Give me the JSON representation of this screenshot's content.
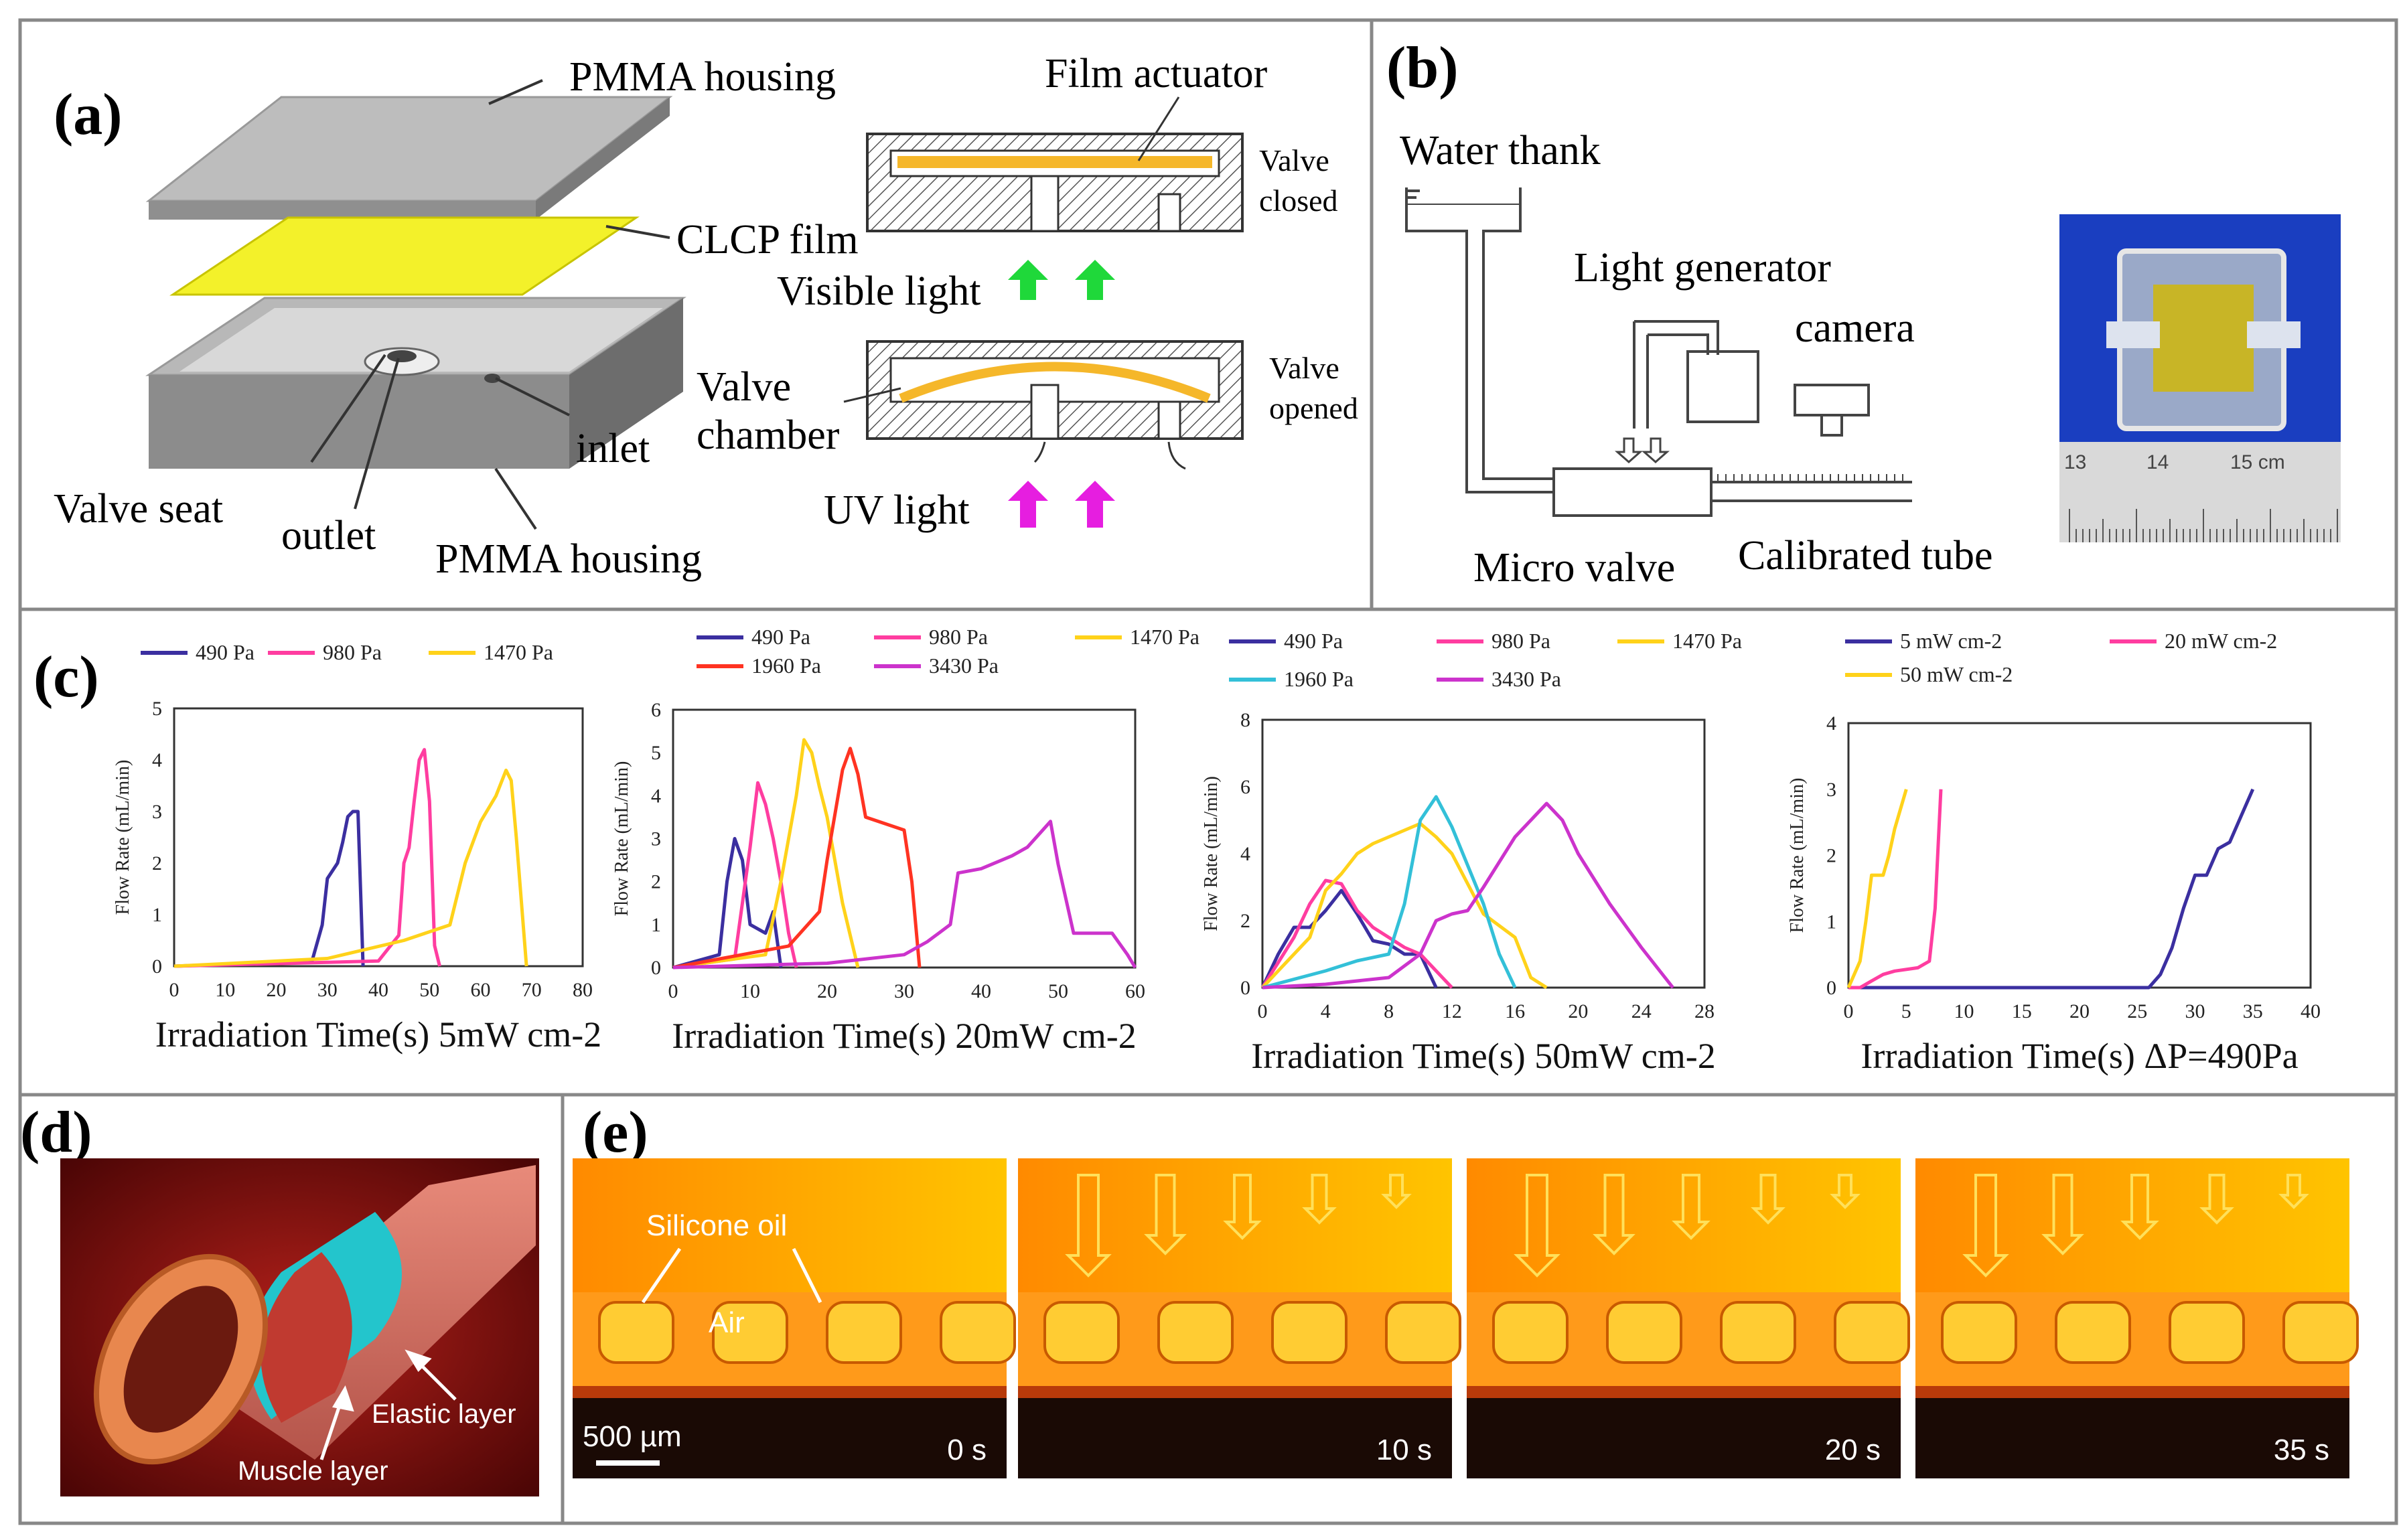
{
  "panel_a": {
    "label": "(a)",
    "pmma_top": "PMMA housing",
    "clcp": "CLCP film",
    "valve_seat": "Valve seat",
    "outlet": "outlet",
    "inlet": "inlet",
    "pmma_bottom": "PMMA housing",
    "film_actuator": "Film actuator",
    "valve_closed_1": "Valve",
    "valve_closed_2": "closed",
    "visible_light": "Visible light",
    "valve_chamber_1": "Valve",
    "valve_chamber_2": "chamber",
    "valve_opened_1": "Valve",
    "valve_opened_2": "opened",
    "uv_light": "UV light"
  },
  "panel_b": {
    "label": "(b)",
    "water_tank": "Water thank",
    "light_generator": "Light generator",
    "camera": "camera",
    "micro_valve": "Micro valve",
    "calibrated_tube": "Calibrated tube",
    "ruler": [
      "13",
      "14",
      "15 cm"
    ]
  },
  "panel_c": {
    "label": "(c)"
  },
  "panel_d": {
    "label": "(d)",
    "elastic": "Elastic layer",
    "muscle": "Muscle layer"
  },
  "panel_e": {
    "label": "(e)",
    "silicone": "Silicone oil",
    "air": "Air",
    "scale": "500 µm",
    "times": [
      "0 s",
      "10 s",
      "20 s",
      "35 s"
    ]
  },
  "chart_data": [
    {
      "type": "line",
      "title": "",
      "xlabel": "Irradiation Time(s) 5mW cm-2",
      "ylabel": "Flow Rate (mL/min)",
      "xlim": [
        0,
        80
      ],
      "ylim": [
        0,
        5
      ],
      "xticks": [
        0,
        10,
        20,
        30,
        40,
        50,
        60,
        70,
        80
      ],
      "yticks": [
        0,
        1,
        2,
        3,
        4,
        5
      ],
      "series": [
        {
          "name": "490 Pa",
          "color": "#3b2fa0",
          "points": [
            [
              0,
              0
            ],
            [
              27,
              0.1
            ],
            [
              29,
              0.8
            ],
            [
              30,
              1.7
            ],
            [
              32,
              2.0
            ],
            [
              33,
              2.4
            ],
            [
              34,
              2.9
            ],
            [
              35,
              3.0
            ],
            [
              36,
              3.0
            ],
            [
              37,
              0
            ]
          ]
        },
        {
          "name": "980 Pa",
          "color": "#ff3da0",
          "points": [
            [
              0,
              0
            ],
            [
              40,
              0.1
            ],
            [
              44,
              0.6
            ],
            [
              45,
              2.0
            ],
            [
              46,
              2.3
            ],
            [
              47,
              3.2
            ],
            [
              48,
              4.0
            ],
            [
              49,
              4.2
            ],
            [
              50,
              3.2
            ],
            [
              51,
              0.4
            ],
            [
              52,
              0
            ]
          ]
        },
        {
          "name": "1470 Pa",
          "color": "#ffd21a",
          "points": [
            [
              0,
              0
            ],
            [
              10,
              0.05
            ],
            [
              30,
              0.15
            ],
            [
              45,
              0.5
            ],
            [
              54,
              0.8
            ],
            [
              57,
              2.0
            ],
            [
              60,
              2.8
            ],
            [
              63,
              3.3
            ],
            [
              65,
              3.8
            ],
            [
              66,
              3.6
            ],
            [
              67,
              2.5
            ],
            [
              69,
              0
            ]
          ]
        }
      ]
    },
    {
      "type": "line",
      "title": "",
      "xlabel": "Irradiation Time(s) 20mW cm-2",
      "ylabel": "Flow Rate (mL/min)",
      "xlim": [
        0,
        60
      ],
      "ylim": [
        0,
        6
      ],
      "xticks": [
        0,
        10,
        20,
        30,
        40,
        50,
        60
      ],
      "yticks": [
        0,
        1,
        2,
        3,
        4,
        5,
        6
      ],
      "series": [
        {
          "name": "490 Pa",
          "color": "#3b2fa0",
          "points": [
            [
              0,
              0
            ],
            [
              6,
              0.3
            ],
            [
              7,
              2.0
            ],
            [
              8,
              3.0
            ],
            [
              9,
              2.5
            ],
            [
              10,
              1.0
            ],
            [
              12,
              0.8
            ],
            [
              13,
              1.3
            ],
            [
              14,
              0
            ]
          ]
        },
        {
          "name": "980 Pa",
          "color": "#ff3da0",
          "points": [
            [
              0,
              0
            ],
            [
              8,
              0.2
            ],
            [
              10,
              2.8
            ],
            [
              11,
              4.3
            ],
            [
              12,
              3.8
            ],
            [
              13,
              3.0
            ],
            [
              14,
              2.0
            ],
            [
              15,
              0.8
            ],
            [
              16,
              0
            ]
          ]
        },
        {
          "name": "1470 Pa",
          "color": "#ffd21a",
          "points": [
            [
              0,
              0
            ],
            [
              12,
              0.3
            ],
            [
              14,
              2.0
            ],
            [
              16,
              4.0
            ],
            [
              17,
              5.3
            ],
            [
              18,
              5.0
            ],
            [
              19,
              4.2
            ],
            [
              20,
              3.5
            ],
            [
              22,
              1.5
            ],
            [
              24,
              0
            ]
          ]
        },
        {
          "name": "1960 Pa",
          "color": "#ff3322",
          "points": [
            [
              0,
              0
            ],
            [
              15,
              0.5
            ],
            [
              19,
              1.3
            ],
            [
              20,
              2.5
            ],
            [
              22,
              4.6
            ],
            [
              23,
              5.1
            ],
            [
              24,
              4.5
            ],
            [
              25,
              3.5
            ],
            [
              30,
              3.2
            ],
            [
              31,
              2.0
            ],
            [
              32,
              0
            ]
          ]
        },
        {
          "name": "3430 Pa",
          "color": "#cc33cc",
          "points": [
            [
              0,
              0
            ],
            [
              20,
              0.1
            ],
            [
              30,
              0.3
            ],
            [
              33,
              0.6
            ],
            [
              36,
              1.0
            ],
            [
              37,
              2.2
            ],
            [
              40,
              2.3
            ],
            [
              44,
              2.6
            ],
            [
              46,
              2.8
            ],
            [
              48,
              3.2
            ],
            [
              49,
              3.4
            ],
            [
              50,
              2.4
            ],
            [
              52,
              0.8
            ],
            [
              57,
              0.8
            ],
            [
              59,
              0.3
            ],
            [
              60,
              0
            ]
          ]
        }
      ]
    },
    {
      "type": "line",
      "title": "",
      "xlabel": "Irradiation Time(s) 50mW cm-2",
      "ylabel": "Flow Rate (mL/min)",
      "xlim": [
        0,
        28
      ],
      "ylim": [
        0,
        8
      ],
      "xticks": [
        0,
        4,
        8,
        12,
        16,
        20,
        24,
        28
      ],
      "yticks": [
        0,
        2,
        4,
        6,
        8
      ],
      "series": [
        {
          "name": "490 Pa",
          "color": "#3b2fa0",
          "points": [
            [
              0,
              0
            ],
            [
              1,
              1.0
            ],
            [
              2,
              1.8
            ],
            [
              3,
              1.8
            ],
            [
              4,
              2.3
            ],
            [
              5,
              2.9
            ],
            [
              6,
              2.2
            ],
            [
              7,
              1.4
            ],
            [
              8,
              1.3
            ],
            [
              9,
              1.0
            ],
            [
              10,
              1.0
            ],
            [
              11,
              0
            ]
          ]
        },
        {
          "name": "980 Pa",
          "color": "#ff3da0",
          "points": [
            [
              0,
              0
            ],
            [
              2,
              1.5
            ],
            [
              3,
              2.5
            ],
            [
              4,
              3.2
            ],
            [
              5,
              3.1
            ],
            [
              6,
              2.3
            ],
            [
              7,
              1.8
            ],
            [
              8,
              1.5
            ],
            [
              9,
              1.2
            ],
            [
              10,
              1.0
            ],
            [
              11,
              0.5
            ],
            [
              12,
              0
            ]
          ]
        },
        {
          "name": "1470 Pa",
          "color": "#ffd21a",
          "points": [
            [
              0,
              0
            ],
            [
              3,
              1.5
            ],
            [
              4,
              2.9
            ],
            [
              5,
              3.4
            ],
            [
              6,
              4.0
            ],
            [
              7,
              4.3
            ],
            [
              8,
              4.5
            ],
            [
              9,
              4.7
            ],
            [
              10,
              4.9
            ],
            [
              11,
              4.5
            ],
            [
              12,
              4.0
            ],
            [
              14,
              2.2
            ],
            [
              16,
              1.5
            ],
            [
              17,
              0.3
            ],
            [
              18,
              0
            ]
          ]
        },
        {
          "name": "1960 Pa",
          "color": "#33c0d8",
          "points": [
            [
              0,
              0
            ],
            [
              4,
              0.5
            ],
            [
              6,
              0.8
            ],
            [
              8,
              1.0
            ],
            [
              9,
              2.5
            ],
            [
              10,
              5.0
            ],
            [
              11,
              5.7
            ],
            [
              12,
              4.8
            ],
            [
              14,
              2.5
            ],
            [
              15,
              1.0
            ],
            [
              16,
              0
            ]
          ]
        },
        {
          "name": "3430 Pa",
          "color": "#cc33cc",
          "points": [
            [
              0,
              0
            ],
            [
              4,
              0.1
            ],
            [
              8,
              0.3
            ],
            [
              10,
              1.0
            ],
            [
              11,
              2.0
            ],
            [
              12,
              2.2
            ],
            [
              13,
              2.3
            ],
            [
              14,
              3.0
            ],
            [
              16,
              4.5
            ],
            [
              18,
              5.5
            ],
            [
              19,
              5.0
            ],
            [
              20,
              4.0
            ],
            [
              22,
              2.5
            ],
            [
              24,
              1.2
            ],
            [
              26,
              0
            ]
          ]
        }
      ]
    },
    {
      "type": "line",
      "title": "",
      "xlabel": "Irradiation Time(s) ΔP=490Pa",
      "ylabel": "Flow Rate (mL/min)",
      "xlim": [
        0,
        40
      ],
      "ylim": [
        0,
        4
      ],
      "xticks": [
        0,
        5,
        10,
        15,
        20,
        25,
        30,
        35,
        40
      ],
      "yticks": [
        0,
        1,
        2,
        3,
        4
      ],
      "series": [
        {
          "name": "5 mW cm-2",
          "color": "#3b2fa0",
          "points": [
            [
              0,
              0
            ],
            [
              26,
              0
            ],
            [
              27,
              0.2
            ],
            [
              28,
              0.6
            ],
            [
              29,
              1.2
            ],
            [
              30,
              1.7
            ],
            [
              31,
              1.7
            ],
            [
              32,
              2.1
            ],
            [
              33,
              2.2
            ],
            [
              34,
              2.6
            ],
            [
              35,
              3.0
            ]
          ]
        },
        {
          "name": "20 mW cm-2",
          "color": "#ff3da0",
          "points": [
            [
              0,
              0
            ],
            [
              1,
              0
            ],
            [
              2,
              0.1
            ],
            [
              3,
              0.2
            ],
            [
              4,
              0.25
            ],
            [
              6,
              0.3
            ],
            [
              7,
              0.4
            ],
            [
              7.5,
              1.2
            ],
            [
              8,
              3.0
            ]
          ]
        },
        {
          "name": "50 mW cm-2",
          "color": "#ffd21a",
          "points": [
            [
              0,
              0
            ],
            [
              1,
              0.4
            ],
            [
              1.5,
              1.0
            ],
            [
              2,
              1.7
            ],
            [
              3,
              1.7
            ],
            [
              3.5,
              2.0
            ],
            [
              4,
              2.4
            ],
            [
              5,
              3.0
            ]
          ]
        }
      ]
    }
  ]
}
